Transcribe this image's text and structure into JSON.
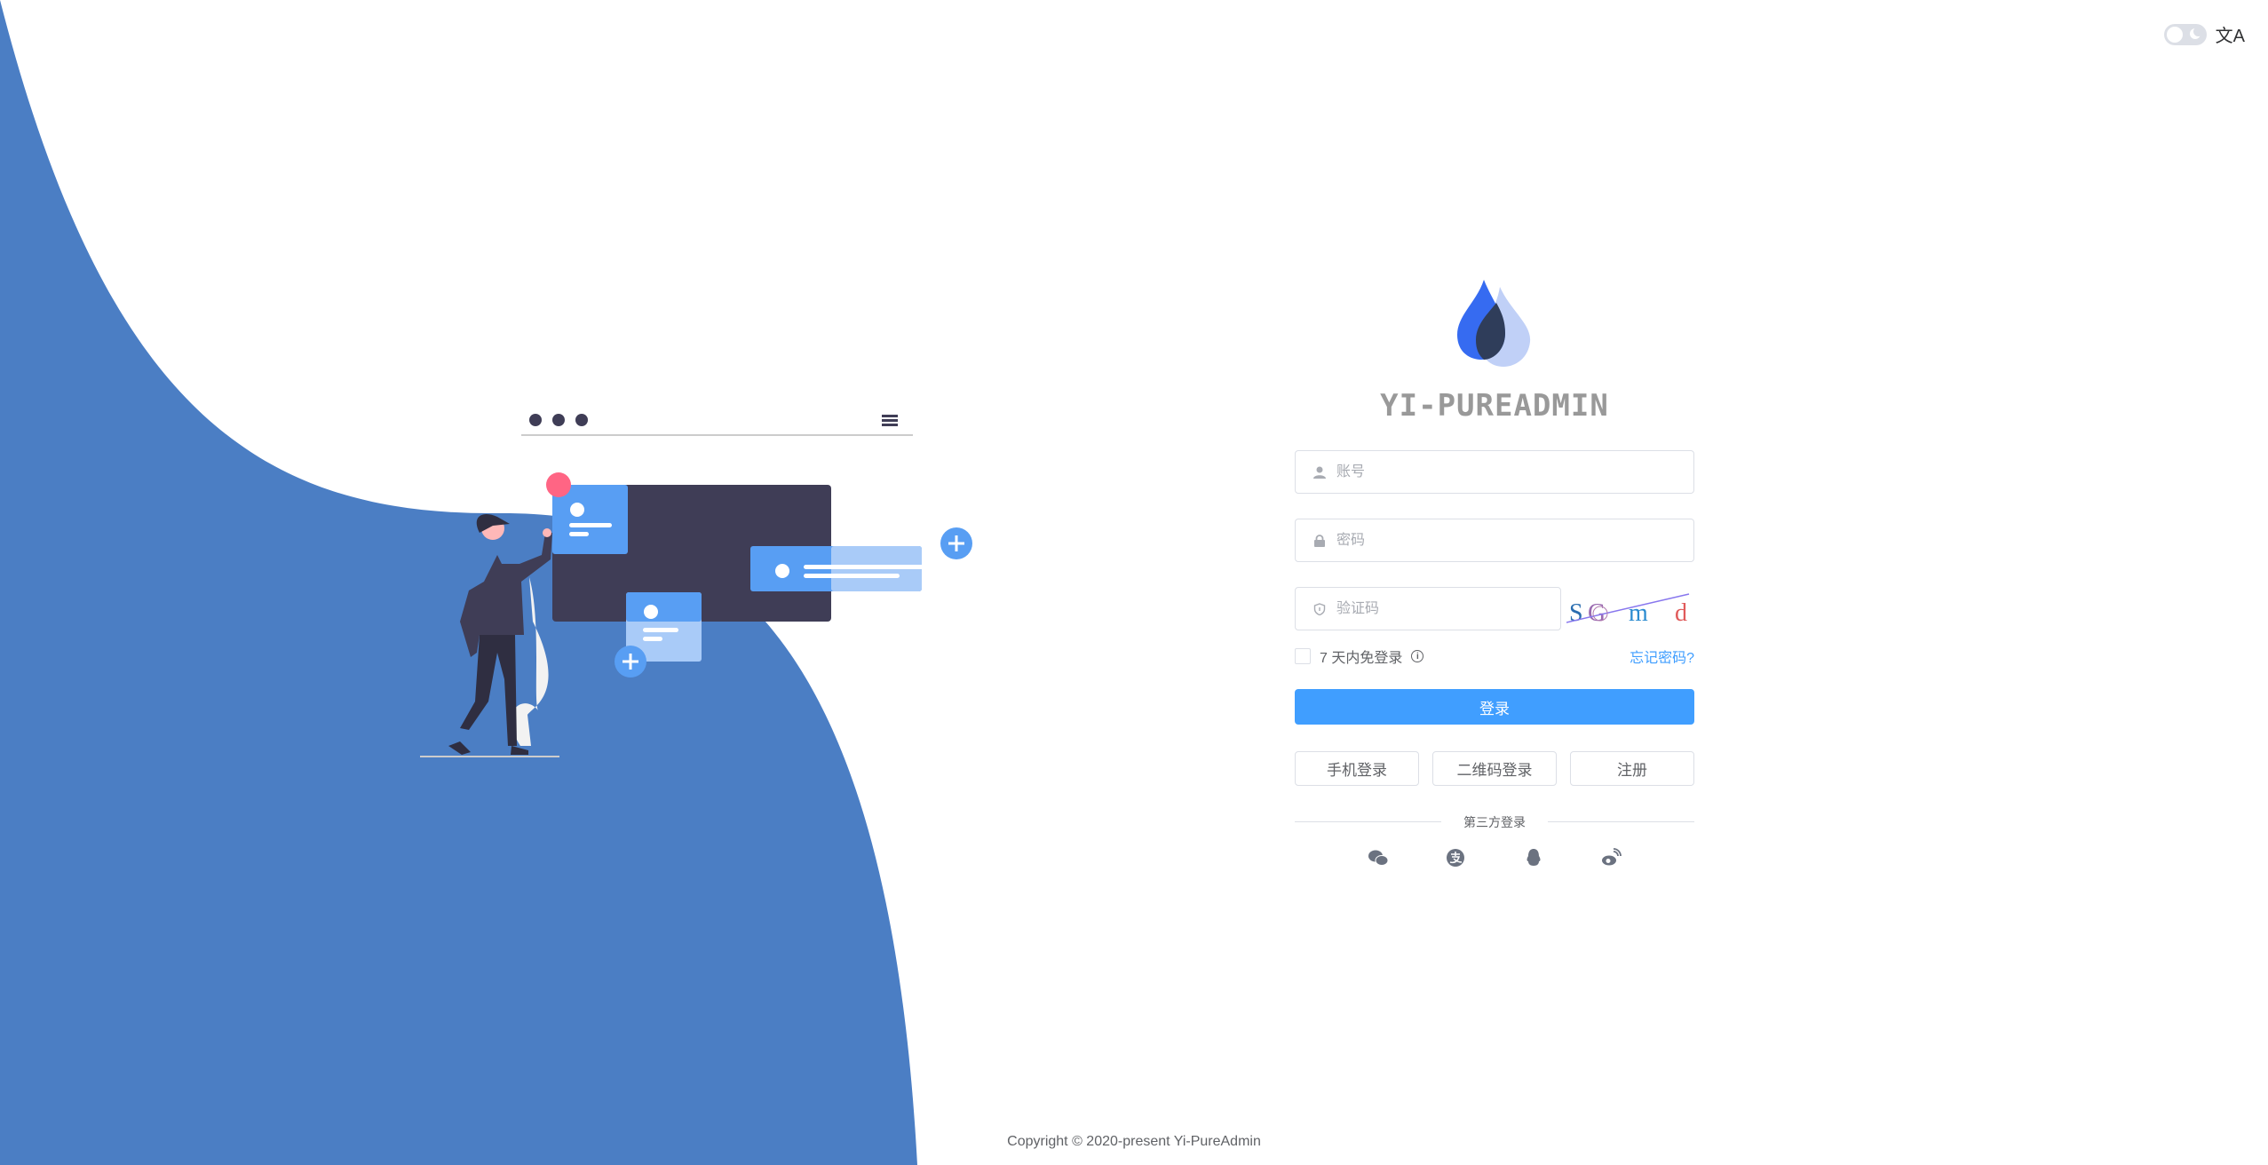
{
  "topbar": {
    "theme_toggle": "dark-mode-toggle",
    "language_icon": "文A"
  },
  "brand": {
    "title": "YI-PUREADMIN"
  },
  "form": {
    "username_placeholder": "账号",
    "password_placeholder": "密码",
    "captcha_placeholder": "验证码",
    "captcha_text": [
      "S",
      "G",
      "m",
      "d"
    ],
    "remember_label": "7 天内免登录",
    "forgot_label": "忘记密码?",
    "login_label": "登录",
    "alt_buttons": [
      "手机登录",
      "二维码登录",
      "注册"
    ],
    "third_party_label": "第三方登录",
    "third_party_icons": [
      "wechat-icon",
      "alipay-icon",
      "qq-icon",
      "weibo-icon"
    ]
  },
  "footer": {
    "copyright": "Copyright © 2020-present Yi-PureAdmin"
  },
  "colors": {
    "primary": "#409eff",
    "wave": "#4b7ec4",
    "title": "#999999"
  }
}
